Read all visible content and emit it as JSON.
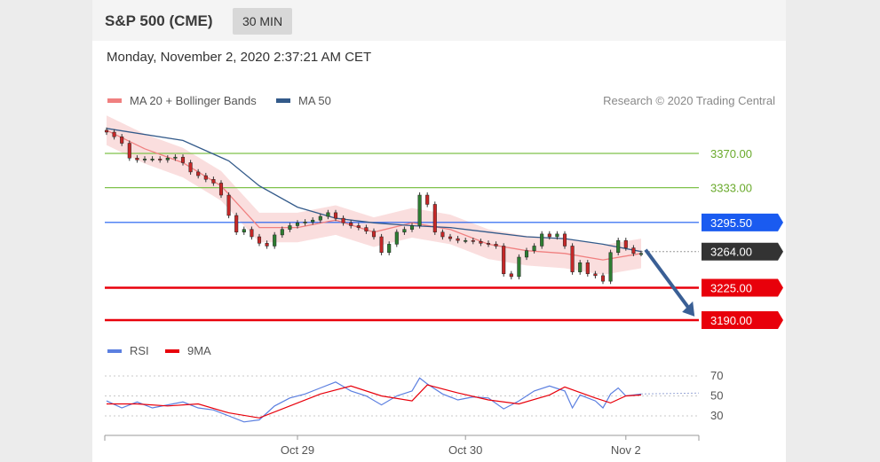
{
  "header": {
    "title": "S&P 500 (CME)",
    "interval": "30 MIN"
  },
  "datetime": "Monday, November 2, 2020 2:37:21 AM CET",
  "colors": {
    "support": "#e8000b",
    "resistance": "#7fc24a",
    "pivot": "#1a5bf0",
    "last": "#333333",
    "ma20": "#f08080",
    "ma50": "#335a8a",
    "rsi": "#5b7fe0",
    "rsi_ma": "#e8000b",
    "arrow": "#3a5f95",
    "candle_up": "#2e7d32",
    "candle_down": "#c62828"
  },
  "legend": {
    "ma20": "MA 20 + Bollinger Bands",
    "ma50": "MA 50",
    "rsi": "RSI",
    "rsi_ma": "9MA"
  },
  "research_label": "Research © 2020 Trading Central",
  "chart_data": [
    {
      "type": "line",
      "price_range": [
        3182,
        3400
      ],
      "x_ticks": [
        {
          "label": "Oct 29",
          "x": 25
        },
        {
          "label": "Oct 30",
          "x": 47
        },
        {
          "label": "Nov 2",
          "x": 68
        }
      ],
      "levels": [
        {
          "value": 3370.0,
          "label": "3370.00",
          "kind": "resistance"
        },
        {
          "value": 3333.0,
          "label": "3333.00",
          "kind": "resistance"
        },
        {
          "value": 3295.5,
          "label": "3295.50",
          "kind": "pivot"
        },
        {
          "value": 3264.0,
          "label": "3264.00",
          "kind": "last"
        },
        {
          "value": 3225.0,
          "label": "3225.00",
          "kind": "support"
        },
        {
          "value": 3190.0,
          "label": "3190.00",
          "kind": "support"
        }
      ],
      "close_series": [
        [
          0,
          3393
        ],
        [
          1,
          3388
        ],
        [
          2,
          3381
        ],
        [
          3,
          3365
        ],
        [
          4,
          3363
        ],
        [
          5,
          3364
        ],
        [
          6,
          3364
        ],
        [
          7,
          3363
        ],
        [
          8,
          3365
        ],
        [
          9,
          3366
        ],
        [
          10,
          3360
        ],
        [
          11,
          3350
        ],
        [
          12,
          3346
        ],
        [
          13,
          3342
        ],
        [
          14,
          3338
        ],
        [
          15,
          3325
        ],
        [
          16,
          3303
        ],
        [
          17,
          3285
        ],
        [
          18,
          3288
        ],
        [
          19,
          3280
        ],
        [
          20,
          3273
        ],
        [
          21,
          3270
        ],
        [
          22,
          3282
        ],
        [
          23,
          3288
        ],
        [
          24,
          3292
        ],
        [
          25,
          3295
        ],
        [
          26,
          3296
        ],
        [
          27,
          3298
        ],
        [
          28,
          3302
        ],
        [
          29,
          3306
        ],
        [
          30,
          3300
        ],
        [
          31,
          3295
        ],
        [
          32,
          3292
        ],
        [
          33,
          3290
        ],
        [
          34,
          3286
        ],
        [
          35,
          3280
        ],
        [
          36,
          3263
        ],
        [
          37,
          3272
        ],
        [
          38,
          3285
        ],
        [
          39,
          3288
        ],
        [
          40,
          3292
        ],
        [
          41,
          3325
        ],
        [
          42,
          3315
        ],
        [
          43,
          3285
        ],
        [
          44,
          3280
        ],
        [
          45,
          3278
        ],
        [
          46,
          3276
        ],
        [
          47,
          3276
        ],
        [
          48,
          3275
        ],
        [
          49,
          3273
        ],
        [
          50,
          3272
        ],
        [
          51,
          3270
        ],
        [
          52,
          3240
        ],
        [
          53,
          3237
        ],
        [
          54,
          3258
        ],
        [
          55,
          3265
        ],
        [
          56,
          3270
        ],
        [
          57,
          3283
        ],
        [
          58,
          3280
        ],
        [
          59,
          3283
        ],
        [
          60,
          3270
        ],
        [
          61,
          3242
        ],
        [
          62,
          3252
        ],
        [
          63,
          3240
        ],
        [
          64,
          3238
        ],
        [
          65,
          3232
        ],
        [
          66,
          3263
        ],
        [
          67,
          3276
        ],
        [
          68,
          3268
        ],
        [
          69,
          3262
        ],
        [
          70,
          3262
        ]
      ],
      "ma50_series": [
        [
          0,
          3397
        ],
        [
          10,
          3384
        ],
        [
          16,
          3362
        ],
        [
          20,
          3335
        ],
        [
          25,
          3312
        ],
        [
          30,
          3300
        ],
        [
          35,
          3295
        ],
        [
          40,
          3292
        ],
        [
          45,
          3290
        ],
        [
          50,
          3285
        ],
        [
          55,
          3280
        ],
        [
          60,
          3278
        ],
        [
          65,
          3272
        ],
        [
          70,
          3264
        ]
      ],
      "ma20_series": [
        [
          0,
          3395
        ],
        [
          5,
          3375
        ],
        [
          10,
          3360
        ],
        [
          15,
          3335
        ],
        [
          20,
          3290
        ],
        [
          25,
          3290
        ],
        [
          30,
          3298
        ],
        [
          35,
          3285
        ],
        [
          40,
          3295
        ],
        [
          45,
          3288
        ],
        [
          50,
          3272
        ],
        [
          55,
          3265
        ],
        [
          60,
          3262
        ],
        [
          65,
          3255
        ],
        [
          70,
          3262
        ]
      ],
      "forecast_arrow": {
        "from": [
          70,
          3265
        ],
        "to": [
          77,
          3192
        ]
      }
    },
    {
      "type": "line",
      "name": "RSI",
      "y_ticks": [
        70,
        50,
        30
      ],
      "ylim": [
        15,
        85
      ],
      "rsi_series": [
        [
          0,
          45
        ],
        [
          2,
          38
        ],
        [
          4,
          44
        ],
        [
          6,
          38
        ],
        [
          8,
          41
        ],
        [
          10,
          44
        ],
        [
          12,
          38
        ],
        [
          14,
          36
        ],
        [
          16,
          30
        ],
        [
          18,
          24
        ],
        [
          20,
          26
        ],
        [
          22,
          40
        ],
        [
          24,
          48
        ],
        [
          26,
          52
        ],
        [
          28,
          58
        ],
        [
          30,
          64
        ],
        [
          32,
          55
        ],
        [
          34,
          50
        ],
        [
          36,
          41
        ],
        [
          38,
          50
        ],
        [
          40,
          55
        ],
        [
          41,
          68
        ],
        [
          42,
          62
        ],
        [
          44,
          52
        ],
        [
          46,
          46
        ],
        [
          48,
          49
        ],
        [
          50,
          48
        ],
        [
          52,
          37
        ],
        [
          54,
          45
        ],
        [
          56,
          55
        ],
        [
          58,
          60
        ],
        [
          60,
          55
        ],
        [
          61,
          38
        ],
        [
          62,
          51
        ],
        [
          64,
          45
        ],
        [
          65,
          38
        ],
        [
          66,
          52
        ],
        [
          67,
          58
        ],
        [
          68,
          50
        ],
        [
          70,
          52
        ]
      ],
      "rsi_ma_series": [
        [
          0,
          42
        ],
        [
          4,
          42
        ],
        [
          8,
          40
        ],
        [
          12,
          42
        ],
        [
          16,
          33
        ],
        [
          20,
          28
        ],
        [
          24,
          40
        ],
        [
          28,
          52
        ],
        [
          32,
          60
        ],
        [
          36,
          50
        ],
        [
          40,
          45
        ],
        [
          42,
          61
        ],
        [
          46,
          53
        ],
        [
          50,
          46
        ],
        [
          54,
          42
        ],
        [
          58,
          51
        ],
        [
          60,
          59
        ],
        [
          64,
          48
        ],
        [
          66,
          43
        ],
        [
          68,
          50
        ],
        [
          70,
          51
        ]
      ]
    }
  ]
}
